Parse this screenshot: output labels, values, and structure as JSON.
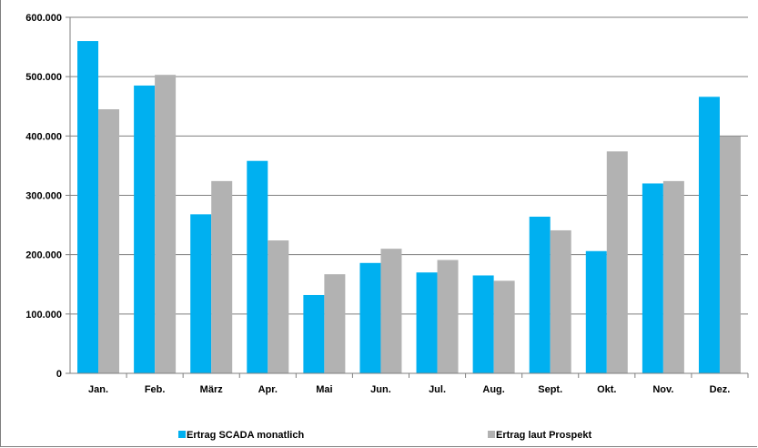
{
  "chart_data": {
    "type": "bar",
    "categories": [
      "Jan.",
      "Feb.",
      "März",
      "Apr.",
      "Mai",
      "Jun.",
      "Jul.",
      "Aug.",
      "Sept.",
      "Okt.",
      "Nov.",
      "Dez."
    ],
    "series": [
      {
        "name": "Ertrag SCADA monatlich",
        "color": "#00b0f0",
        "values": [
          560000,
          485000,
          268000,
          358000,
          132000,
          186000,
          170000,
          165000,
          264000,
          206000,
          320000,
          466000
        ]
      },
      {
        "name": "Ertrag laut Prospekt",
        "color": "#b2b2b2",
        "values": [
          445000,
          503000,
          324000,
          224000,
          167000,
          210000,
          191000,
          156000,
          241000,
          374000,
          324000,
          399000
        ]
      }
    ],
    "yticks": [
      "0",
      "100.000",
      "200.000",
      "300.000",
      "400.000",
      "500.000",
      "600.000"
    ],
    "ylim": [
      0,
      600000
    ],
    "grid": true,
    "legend": "bottom",
    "title": "",
    "xlabel": "",
    "ylabel": ""
  }
}
